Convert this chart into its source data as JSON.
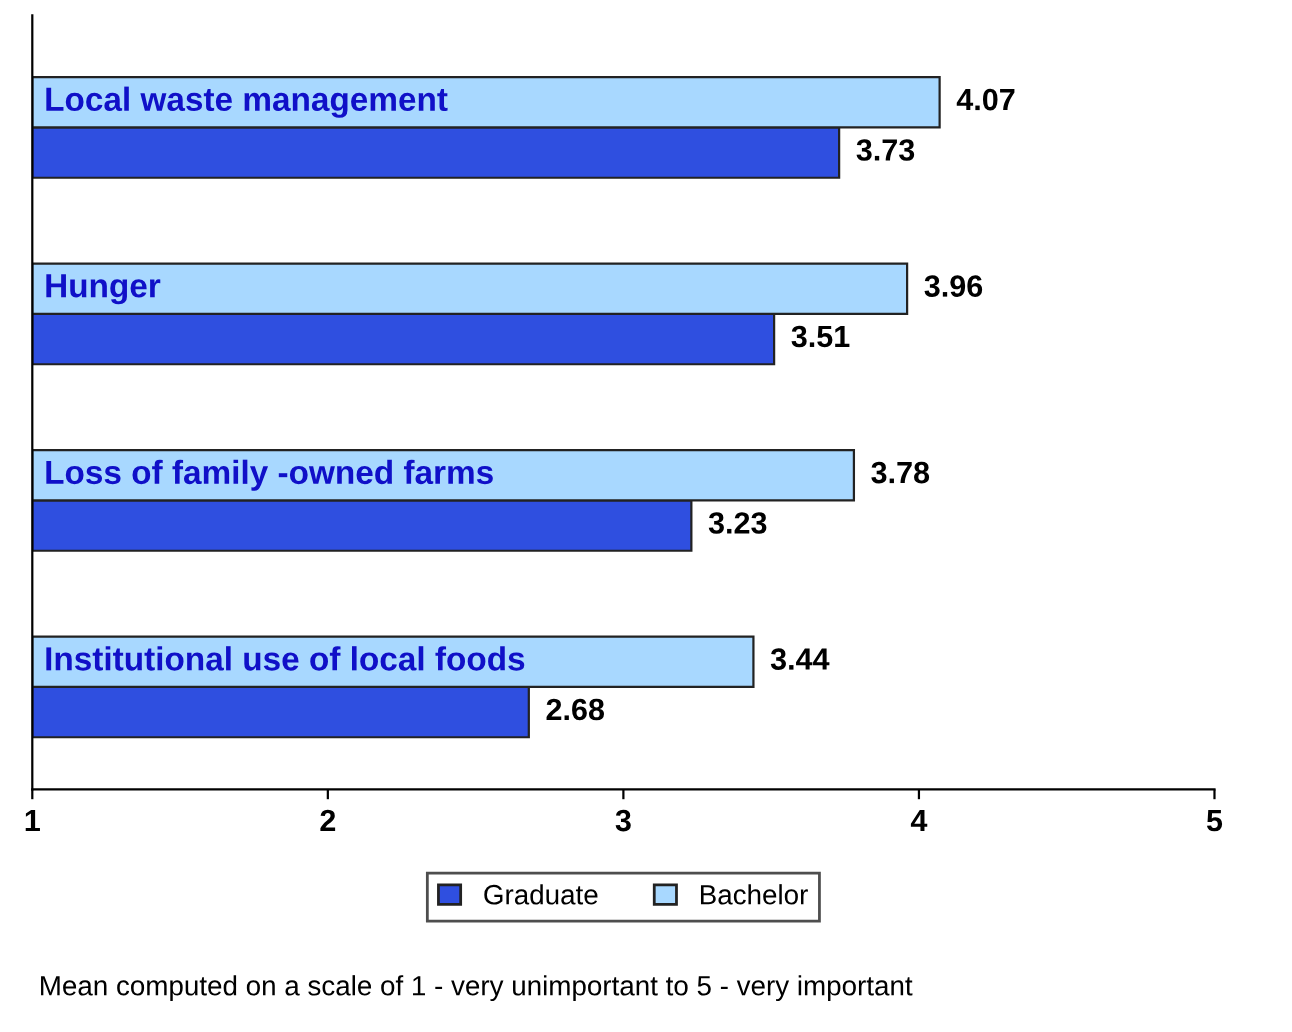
{
  "chart_data": {
    "type": "bar",
    "orientation": "horizontal",
    "categories": [
      "Local waste management",
      "Hunger",
      "Loss of family -owned farms",
      "Institutional use of local foods"
    ],
    "series": [
      {
        "name": "Graduate",
        "color": "#2f4fe0",
        "values": [
          3.73,
          3.51,
          3.23,
          2.68
        ]
      },
      {
        "name": "Bachelor",
        "color": "#a8d8ff",
        "values": [
          4.07,
          3.96,
          3.78,
          3.44
        ]
      }
    ],
    "xlim": [
      1,
      5
    ],
    "xticks": [
      1,
      2,
      3,
      4,
      5
    ],
    "data_labels": true,
    "grid": false,
    "legend": "bottom",
    "annotations": [
      "Mean computed on a scale of 1 - very unimportant to 5 - very important"
    ]
  }
}
